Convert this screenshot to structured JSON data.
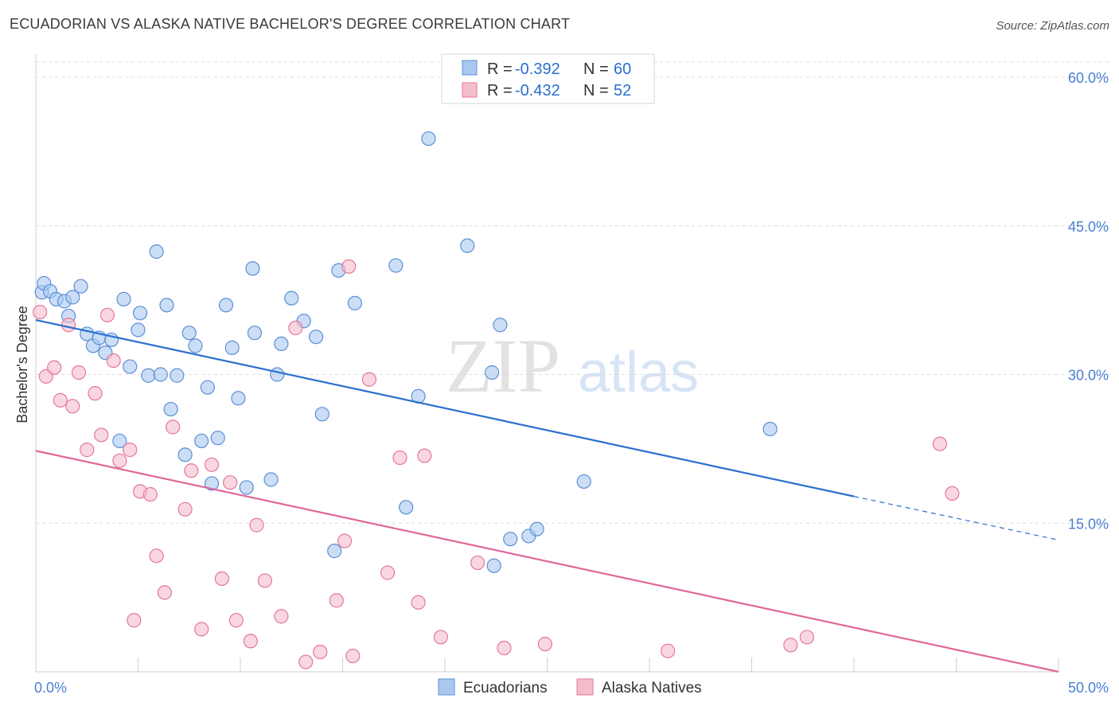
{
  "header": {
    "title": "ECUADORIAN VS ALASKA NATIVE BACHELOR'S DEGREE CORRELATION CHART",
    "source": "Source: ZipAtlas.com"
  },
  "watermark": {
    "zip": "ZIP",
    "atlas": "atlas"
  },
  "colors": {
    "blue_fill": "#a9c8f0",
    "blue_stroke": "#5b8fd6",
    "blue_line": "#2a6fd0",
    "pink_fill": "#f5bccb",
    "pink_stroke": "#e47898",
    "pink_line": "#e0679a",
    "tick_label": "#4a7fd0",
    "grid": "#dcdcdc"
  },
  "chart_data": {
    "type": "scatter",
    "xlabel": "",
    "ylabel": "Bachelor's Degree",
    "xlim": [
      0,
      50
    ],
    "ylim": [
      0,
      62
    ],
    "x_tick_labels": [
      {
        "value": 0,
        "label": "0.0%"
      },
      {
        "value": 50,
        "label": "50.0%"
      }
    ],
    "y_tick_labels": [
      {
        "value": 15,
        "label": "15.0%"
      },
      {
        "value": 30,
        "label": "30.0%"
      },
      {
        "value": 45,
        "label": "45.0%"
      },
      {
        "value": 60,
        "label": "60.0%"
      }
    ],
    "grid": "horizontal dashed",
    "legend": {
      "placement": "top-center",
      "entries": [
        {
          "r_label": "R = ",
          "r_value": "-0.392",
          "n_label": "N = ",
          "n_value": "60"
        },
        {
          "r_label": "R = ",
          "r_value": "-0.432",
          "n_label": "N = ",
          "n_value": "52"
        }
      ]
    },
    "series": [
      {
        "name": "Ecuadorians",
        "color": "#a9c8f0",
        "trend": {
          "x": [
            0,
            40
          ],
          "y": [
            35.5,
            17.7
          ],
          "dashed_to": [
            50,
            13.3
          ]
        },
        "points": [
          [
            0.3,
            38.3
          ],
          [
            0.4,
            39.2
          ],
          [
            0.7,
            38.4
          ],
          [
            1.0,
            37.6
          ],
          [
            1.4,
            37.4
          ],
          [
            1.6,
            35.9
          ],
          [
            1.8,
            37.8
          ],
          [
            2.2,
            38.9
          ],
          [
            2.5,
            34.1
          ],
          [
            2.8,
            32.9
          ],
          [
            3.1,
            33.7
          ],
          [
            3.4,
            32.2
          ],
          [
            3.7,
            33.5
          ],
          [
            4.1,
            23.3
          ],
          [
            4.3,
            37.6
          ],
          [
            4.6,
            30.8
          ],
          [
            5.0,
            34.5
          ],
          [
            5.1,
            36.2
          ],
          [
            5.5,
            29.9
          ],
          [
            5.9,
            42.4
          ],
          [
            6.1,
            30.0
          ],
          [
            6.4,
            37.0
          ],
          [
            6.6,
            26.5
          ],
          [
            6.9,
            29.9
          ],
          [
            7.3,
            21.9
          ],
          [
            7.5,
            34.2
          ],
          [
            7.8,
            32.9
          ],
          [
            8.1,
            23.3
          ],
          [
            8.4,
            28.7
          ],
          [
            8.6,
            19.0
          ],
          [
            8.9,
            23.6
          ],
          [
            9.3,
            37.0
          ],
          [
            9.6,
            32.7
          ],
          [
            9.9,
            27.6
          ],
          [
            10.3,
            18.6
          ],
          [
            10.6,
            40.7
          ],
          [
            10.7,
            34.2
          ],
          [
            11.5,
            19.4
          ],
          [
            11.8,
            30.0
          ],
          [
            12.0,
            33.1
          ],
          [
            12.5,
            37.7
          ],
          [
            13.1,
            35.4
          ],
          [
            13.7,
            33.8
          ],
          [
            14.0,
            26.0
          ],
          [
            14.6,
            12.2
          ],
          [
            14.8,
            40.5
          ],
          [
            15.6,
            37.2
          ],
          [
            17.6,
            41.0
          ],
          [
            18.1,
            16.6
          ],
          [
            18.7,
            27.8
          ],
          [
            19.2,
            53.8
          ],
          [
            21.1,
            43.0
          ],
          [
            22.3,
            30.2
          ],
          [
            22.4,
            10.7
          ],
          [
            22.7,
            35.0
          ],
          [
            23.2,
            13.4
          ],
          [
            24.1,
            13.7
          ],
          [
            24.5,
            14.4
          ],
          [
            26.8,
            19.2
          ],
          [
            35.9,
            24.5
          ]
        ]
      },
      {
        "name": "Alaska Natives",
        "color": "#f5bccb",
        "trend": {
          "x": [
            0,
            50
          ],
          "y": [
            22.3,
            0
          ]
        },
        "points": [
          [
            0.2,
            36.3
          ],
          [
            0.5,
            29.8
          ],
          [
            0.9,
            30.7
          ],
          [
            1.2,
            27.4
          ],
          [
            1.6,
            35.0
          ],
          [
            1.8,
            26.8
          ],
          [
            2.1,
            30.2
          ],
          [
            2.5,
            22.4
          ],
          [
            2.9,
            28.1
          ],
          [
            3.2,
            23.9
          ],
          [
            3.5,
            36.0
          ],
          [
            3.8,
            31.4
          ],
          [
            4.1,
            21.3
          ],
          [
            4.6,
            22.4
          ],
          [
            4.8,
            5.2
          ],
          [
            5.1,
            18.2
          ],
          [
            5.6,
            17.9
          ],
          [
            5.9,
            11.7
          ],
          [
            6.3,
            8.0
          ],
          [
            6.7,
            24.7
          ],
          [
            7.3,
            16.4
          ],
          [
            7.6,
            20.3
          ],
          [
            8.1,
            4.3
          ],
          [
            8.6,
            20.9
          ],
          [
            9.1,
            9.4
          ],
          [
            9.5,
            19.1
          ],
          [
            9.8,
            5.2
          ],
          [
            10.5,
            3.1
          ],
          [
            10.8,
            14.8
          ],
          [
            11.2,
            9.2
          ],
          [
            12.0,
            5.6
          ],
          [
            12.7,
            34.7
          ],
          [
            13.2,
            1.0
          ],
          [
            13.9,
            2.0
          ],
          [
            14.7,
            7.2
          ],
          [
            15.1,
            13.2
          ],
          [
            15.3,
            40.9
          ],
          [
            15.5,
            1.6
          ],
          [
            16.3,
            29.5
          ],
          [
            17.2,
            10.0
          ],
          [
            17.8,
            21.6
          ],
          [
            18.7,
            7.0
          ],
          [
            19.0,
            21.8
          ],
          [
            19.8,
            3.5
          ],
          [
            21.6,
            11.0
          ],
          [
            22.9,
            2.4
          ],
          [
            24.9,
            2.8
          ],
          [
            30.9,
            2.1
          ],
          [
            36.9,
            2.7
          ],
          [
            37.7,
            3.5
          ],
          [
            44.2,
            23.0
          ],
          [
            44.8,
            18.0
          ]
        ]
      }
    ]
  }
}
